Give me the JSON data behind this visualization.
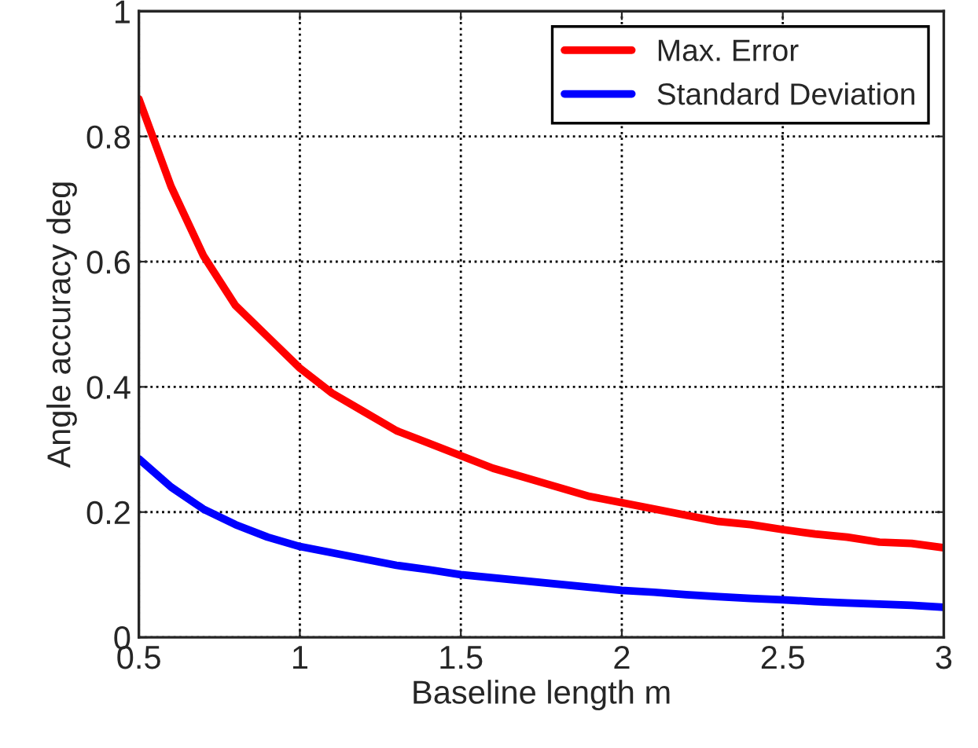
{
  "chart_data": {
    "type": "line",
    "xlabel": "Baseline length m",
    "ylabel": "Angle accuracy deg",
    "xlim": [
      0.5,
      3
    ],
    "ylim": [
      0,
      1
    ],
    "xticks": [
      0.5,
      1,
      1.5,
      2,
      2.5,
      3
    ],
    "yticks": [
      0,
      0.2,
      0.4,
      0.6,
      0.8,
      1
    ],
    "grid": true,
    "legend": "top right",
    "line_style": "solid",
    "marker": "none",
    "series": [
      {
        "name": "Max. Error",
        "color": "#ff0000",
        "x": [
          0.5,
          0.55,
          0.6,
          0.7,
          0.8,
          0.9,
          1.0,
          1.1,
          1.2,
          1.3,
          1.4,
          1.5,
          1.6,
          1.7,
          1.8,
          1.9,
          2.0,
          2.1,
          2.2,
          2.3,
          2.4,
          2.5,
          2.6,
          2.7,
          2.8,
          2.9,
          3.0
        ],
        "values": [
          0.86,
          0.79,
          0.72,
          0.61,
          0.53,
          0.48,
          0.43,
          0.39,
          0.36,
          0.33,
          0.31,
          0.29,
          0.27,
          0.255,
          0.24,
          0.225,
          0.215,
          0.205,
          0.195,
          0.185,
          0.18,
          0.172,
          0.165,
          0.16,
          0.152,
          0.15,
          0.143
        ]
      },
      {
        "name": "Standard Deviation",
        "color": "#0000ff",
        "x": [
          0.5,
          0.6,
          0.7,
          0.8,
          0.9,
          1.0,
          1.1,
          1.2,
          1.3,
          1.4,
          1.5,
          1.6,
          1.7,
          1.8,
          1.9,
          2.0,
          2.1,
          2.2,
          2.3,
          2.4,
          2.5,
          2.6,
          2.7,
          2.8,
          2.9,
          3.0
        ],
        "values": [
          0.285,
          0.24,
          0.205,
          0.18,
          0.16,
          0.145,
          0.135,
          0.125,
          0.115,
          0.108,
          0.1,
          0.095,
          0.09,
          0.085,
          0.08,
          0.075,
          0.072,
          0.068,
          0.065,
          0.062,
          0.06,
          0.057,
          0.055,
          0.053,
          0.051,
          0.048
        ]
      }
    ]
  }
}
